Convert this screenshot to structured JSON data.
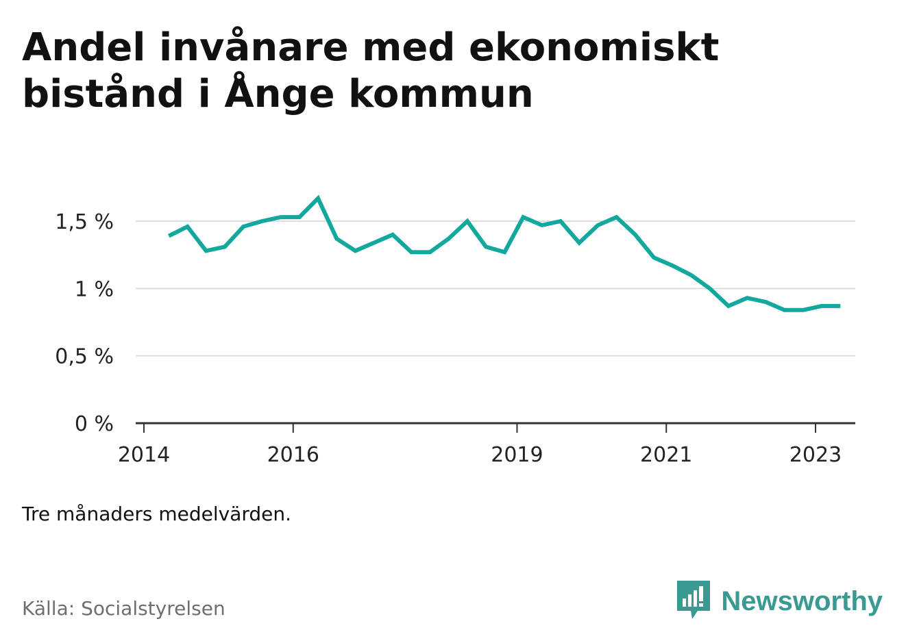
{
  "title": "Andel invånare med ekonomiskt bistånd i Ånge kommun",
  "note": "Tre månaders medelvärden.",
  "source": "Källa: Socialstyrelsen",
  "brand": {
    "name": "Newsworthy",
    "icon": "newsworthy-logo-icon"
  },
  "colors": {
    "line": "#13a89e",
    "grid": "#dddddd",
    "axis": "#333333",
    "brand": "#3a9a92"
  },
  "chart_data": {
    "type": "line",
    "title": "Andel invånare med ekonomiskt bistånd i Ånge kommun",
    "xlabel": "",
    "ylabel": "",
    "x_ticks": [
      "2014",
      "2016",
      "2019",
      "2021",
      "2023"
    ],
    "y_ticks": [
      "0 %",
      "0,5 %",
      "1 %",
      "1,5 %"
    ],
    "ylim": [
      0,
      1.5
    ],
    "grid": true,
    "x": [
      "2014-05",
      "2014-08",
      "2014-11",
      "2015-02",
      "2015-05",
      "2015-08",
      "2015-11",
      "2016-02",
      "2016-05",
      "2016-08",
      "2016-11",
      "2017-02",
      "2017-05",
      "2017-08",
      "2017-11",
      "2018-02",
      "2018-05",
      "2018-08",
      "2018-11",
      "2019-02",
      "2019-05",
      "2019-08",
      "2019-11",
      "2020-02",
      "2020-05",
      "2020-08",
      "2020-11",
      "2021-02",
      "2021-05",
      "2021-08",
      "2021-11",
      "2022-02",
      "2022-05",
      "2022-08",
      "2022-11",
      "2023-02",
      "2023-05"
    ],
    "values": [
      1.39,
      1.46,
      1.28,
      1.31,
      1.46,
      1.5,
      1.53,
      1.53,
      1.67,
      1.37,
      1.28,
      1.34,
      1.4,
      1.27,
      1.27,
      1.37,
      1.5,
      1.31,
      1.27,
      1.53,
      1.47,
      1.5,
      1.34,
      1.47,
      1.53,
      1.4,
      1.23,
      1.17,
      1.1,
      1.0,
      0.87,
      0.93,
      0.9,
      0.84,
      0.84,
      0.87,
      0.87
    ]
  }
}
